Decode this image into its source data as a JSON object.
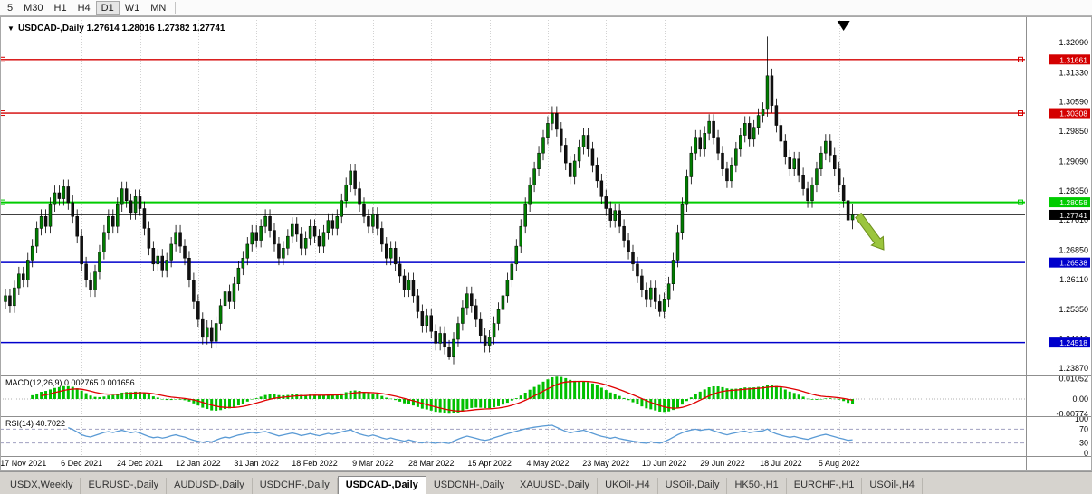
{
  "toolbar": {
    "periods": [
      {
        "label": "5",
        "active": false
      },
      {
        "label": "M30",
        "active": false
      },
      {
        "label": "H1",
        "active": false
      },
      {
        "label": "H4",
        "active": false
      },
      {
        "label": "D1",
        "active": true
      },
      {
        "label": "W1",
        "active": false
      },
      {
        "label": "MN",
        "active": false
      }
    ]
  },
  "chart": {
    "dropdown_icon": "▼",
    "header_text": "USDCAD-,Daily 1.27614 1.28016 1.27382 1.27741"
  },
  "chart_data": {
    "type": "candlestick",
    "symbol": "USDCAD",
    "timeframe": "Daily",
    "ohlc_current": {
      "open": 1.27614,
      "high": 1.28016,
      "low": 1.27382,
      "close": 1.27741
    },
    "wick": 0.0018,
    "closes": [
      1.257,
      1.2545,
      1.259,
      1.2625,
      1.261,
      1.266,
      1.2695,
      1.274,
      1.277,
      1.2745,
      1.28,
      1.283,
      1.2815,
      1.2845,
      1.2805,
      1.277,
      1.272,
      1.265,
      1.261,
      1.2585,
      1.263,
      1.268,
      1.273,
      1.277,
      1.2745,
      1.28,
      1.284,
      1.281,
      1.278,
      1.282,
      1.279,
      1.274,
      1.269,
      1.265,
      1.267,
      1.2635,
      1.266,
      1.27,
      1.273,
      1.2695,
      1.2665,
      1.261,
      1.2555,
      1.251,
      1.2465,
      1.249,
      1.2455,
      1.25,
      1.2545,
      1.258,
      1.2555,
      1.26,
      1.264,
      1.2665,
      1.27,
      1.273,
      1.271,
      1.2745,
      1.277,
      1.2735,
      1.27,
      1.2665,
      1.269,
      1.272,
      1.275,
      1.2725,
      1.269,
      1.2715,
      1.2745,
      1.272,
      1.2695,
      1.273,
      1.276,
      1.274,
      1.277,
      1.281,
      1.285,
      1.2885,
      1.284,
      1.28,
      1.277,
      1.2745,
      1.2775,
      1.274,
      1.27,
      1.2665,
      1.269,
      1.265,
      1.262,
      1.2585,
      1.261,
      1.257,
      1.253,
      1.2495,
      1.252,
      1.248,
      1.245,
      1.2475,
      1.244,
      1.2415,
      1.246,
      1.25,
      1.254,
      1.2575,
      1.2545,
      1.251,
      1.247,
      1.2445,
      1.2465,
      1.25,
      1.2535,
      1.257,
      1.261,
      1.265,
      1.2695,
      1.2745,
      1.28,
      1.285,
      1.289,
      1.293,
      1.297,
      1.3005,
      1.303,
      1.299,
      1.295,
      1.2905,
      1.287,
      1.291,
      1.2945,
      1.2975,
      1.294,
      1.29,
      1.286,
      1.282,
      1.279,
      1.276,
      1.2785,
      1.2745,
      1.271,
      1.268,
      1.265,
      1.262,
      1.2585,
      1.256,
      1.259,
      1.2555,
      1.253,
      1.256,
      1.26,
      1.266,
      1.273,
      1.28,
      1.287,
      1.293,
      1.297,
      1.294,
      1.298,
      1.301,
      1.297,
      1.293,
      1.289,
      1.286,
      1.29,
      1.294,
      1.2975,
      1.3005,
      1.2965,
      1.2995,
      1.3025,
      1.304,
      1.3125,
      1.305,
      1.3,
      1.296,
      1.292,
      1.289,
      1.2915,
      1.2875,
      1.284,
      1.281,
      1.285,
      1.289,
      1.293,
      1.296,
      1.2925,
      1.289,
      1.285,
      1.281,
      1.2761,
      1.27741
    ],
    "spikes": {
      "99": {
        "low": 1.2408
      },
      "146": {
        "low": 1.2518
      },
      "170": {
        "high": 1.3224
      },
      "189": {
        "ohlc": [
          1.27614,
          1.28016,
          1.27382,
          1.27741
        ]
      }
    },
    "levels": [
      {
        "value": 1.31661,
        "label": "1.31661",
        "color": "#d40000",
        "width": 1.3,
        "markers": true
      },
      {
        "value": 1.30308,
        "label": "1.30308",
        "color": "#d40000",
        "width": 1.3,
        "markers": true
      },
      {
        "value": 1.28058,
        "label": "1.28058",
        "color": "#00cc00",
        "width": 2,
        "markers": true
      },
      {
        "value": 1.26538,
        "label": "1.26538",
        "color": "#0000cc",
        "width": 1.5,
        "markers": false
      },
      {
        "value": 1.24518,
        "label": "1.24518",
        "color": "#0000cc",
        "width": 1.5,
        "markers": false
      }
    ],
    "current_price": {
      "value": 1.27741,
      "label": "1.27741",
      "color": "#000000"
    },
    "price_axis_labels": [
      "1.32090",
      "1.31330",
      "1.30590",
      "1.29850",
      "1.29090",
      "1.28350",
      "1.27610",
      "1.26850",
      "1.26110",
      "1.25350",
      "1.24610",
      "1.23870"
    ],
    "dates": [
      {
        "label": "17 Nov 2021",
        "index": 4
      },
      {
        "label": "6 Dec 2021",
        "index": 17
      },
      {
        "label": "24 Dec 2021",
        "index": 30
      },
      {
        "label": "12 Jan 2022",
        "index": 43
      },
      {
        "label": "31 Jan 2022",
        "index": 56
      },
      {
        "label": "18 Feb 2022",
        "index": 69
      },
      {
        "label": "9 Mar 2022",
        "index": 82
      },
      {
        "label": "28 Mar 2022",
        "index": 95
      },
      {
        "label": "15 Apr 2022",
        "index": 108
      },
      {
        "label": "4 May 2022",
        "index": 121
      },
      {
        "label": "23 May 2022",
        "index": 134
      },
      {
        "label": "10 Jun 2022",
        "index": 147
      },
      {
        "label": "29 Jun 2022",
        "index": 160
      },
      {
        "label": "18 Jul 2022",
        "index": 173
      },
      {
        "label": "5 Aug 2022",
        "index": 186
      }
    ],
    "indicators": {
      "macd": {
        "label": "MACD(12,26,9) 0.002765 0.001656",
        "params": [
          12,
          26,
          9
        ],
        "axis": [
          {
            "label": "0.01052",
            "value": 0.01052
          },
          {
            "label": "0.00",
            "value": 0
          },
          {
            "label": "-0.00774",
            "value": -0.00774
          }
        ],
        "histogram_color": "#00c000",
        "signal_color": "#e00000"
      },
      "rsi": {
        "label": "RSI(14) 40.7022",
        "period": 14,
        "current": 40.7022,
        "axis": [
          {
            "label": "100",
            "value": 100
          },
          {
            "label": "70",
            "value": 70
          },
          {
            "label": "30",
            "value": 30
          },
          {
            "label": "0",
            "value": 0
          }
        ],
        "line_color": "#5b9bd5",
        "level_lines": [
          70,
          30
        ]
      }
    },
    "arrows": {
      "black_down": {
        "x_index": 187
      },
      "trend_arrow_color": "#9bc53d",
      "trend_arrow_edge": "#6e8f1f"
    },
    "candle_up_color": "#007d00",
    "candle_down_color": "#111111"
  },
  "tabs": {
    "items": [
      {
        "label": "USDX,Weekly",
        "active": false
      },
      {
        "label": "EURUSD-,Daily",
        "active": false
      },
      {
        "label": "AUDUSD-,Daily",
        "active": false
      },
      {
        "label": "USDCHF-,Daily",
        "active": false
      },
      {
        "label": "USDCAD-,Daily",
        "active": true
      },
      {
        "label": "USDCNH-,Daily",
        "active": false
      },
      {
        "label": "XAUUSD-,Daily",
        "active": false
      },
      {
        "label": "UKOil-,H4",
        "active": false
      },
      {
        "label": "USOil-,Daily",
        "active": false
      },
      {
        "label": "HK50-,H1",
        "active": false
      },
      {
        "label": "EURCHF-,H1",
        "active": false
      },
      {
        "label": "USOil-,H4",
        "active": false
      }
    ]
  }
}
